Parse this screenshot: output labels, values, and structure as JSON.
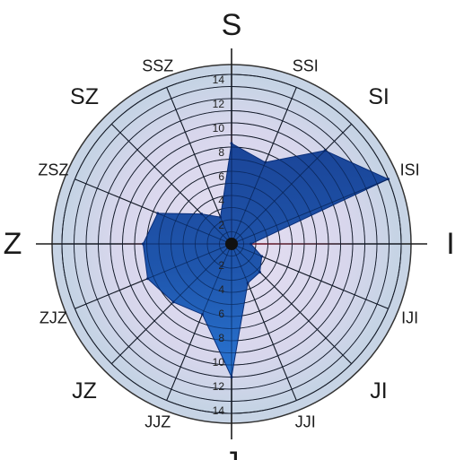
{
  "chart_data": {
    "type": "radar",
    "title": "",
    "directions": [
      "S",
      "SSI",
      "SI",
      "ISI",
      "I",
      "IJI",
      "JI",
      "JJI",
      "J",
      "JJZ",
      "JZ",
      "ZJZ",
      "Z",
      "ZSZ",
      "SZ",
      "SSZ"
    ],
    "direction_levels": [
      "major",
      "minor",
      "inter",
      "minor",
      "major",
      "minor",
      "inter",
      "minor",
      "major",
      "minor",
      "inter",
      "minor",
      "major",
      "minor",
      "inter",
      "minor"
    ],
    "rlim": [
      0,
      14
    ],
    "ticks_upper": [
      "2",
      "4",
      "6",
      "8",
      "10",
      "12",
      "14"
    ],
    "ticks_lower": [
      "2",
      "4",
      "6",
      "8",
      "10",
      "12",
      "14"
    ],
    "series": [
      {
        "values": [
          8.3,
          7.3,
          10.9,
          14.0,
          1.6,
          2.7,
          3.3,
          3.5,
          11.0,
          6.3,
          6.8,
          7.5,
          7.3,
          6.6,
          3.5,
          2.4
        ]
      }
    ],
    "highlight_radius": [
      10.3,
      0.5,
      0.3,
      0.4,
      10.5,
      0.4,
      0.3,
      0.4,
      0.5,
      0.4,
      0.3,
      0.4,
      10.3,
      0.4,
      0.3,
      0.4
    ],
    "colors": {
      "outer_disc": "#c3d2e3",
      "inner_disc": "#ddd8ec",
      "fill_dark": "#0f3c93",
      "fill_light": "#1b67c9",
      "highlight": "#d22030",
      "grid": "#1c1c1c"
    }
  }
}
